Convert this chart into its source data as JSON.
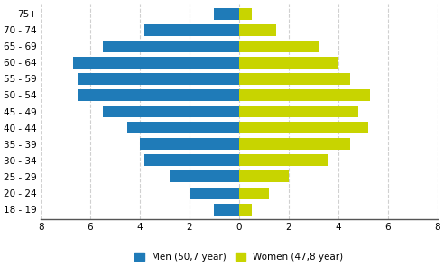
{
  "age_groups": [
    "18 - 19",
    "20 - 24",
    "25 - 29",
    "30 - 34",
    "35 - 39",
    "40 - 44",
    "45 - 49",
    "50 - 54",
    "55 - 59",
    "60 - 64",
    "65 - 69",
    "70 - 74",
    "75+"
  ],
  "men_values": [
    1.0,
    2.0,
    2.8,
    3.8,
    4.0,
    4.5,
    5.5,
    6.5,
    6.5,
    6.7,
    5.5,
    3.8,
    1.0
  ],
  "women_values": [
    0.5,
    1.2,
    2.0,
    3.6,
    4.5,
    5.2,
    4.8,
    5.3,
    4.5,
    4.0,
    3.2,
    1.5,
    0.5
  ],
  "men_color": "#1F7BB8",
  "women_color": "#C8D400",
  "men_label": "Men (50,7 year)",
  "women_label": "Women (47,8 year)",
  "xlim": 8,
  "background_color": "#ffffff",
  "grid_color": "#d0d0d0",
  "bar_height": 0.72
}
